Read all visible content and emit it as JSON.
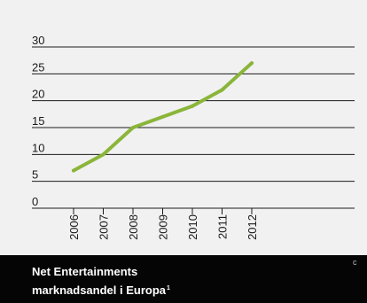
{
  "chart_data": {
    "type": "line",
    "title": "Net Entertainments marknadsandel i Europa",
    "title_note": "1",
    "x": [
      "2006",
      "2007",
      "2008",
      "2009",
      "2010",
      "2011",
      "2012"
    ],
    "series": [
      {
        "values": [
          7,
          10,
          15,
          17,
          19,
          22,
          27
        ]
      }
    ],
    "yticks": [
      0,
      5,
      10,
      15,
      20,
      25,
      30
    ],
    "ylim": [
      0,
      30
    ],
    "xlabel": "",
    "ylabel": "",
    "grid": true,
    "colors": {
      "line": "#8ab53a",
      "grid": "#1a1a1a",
      "panel": "#f1f1f1",
      "footer": "#050505"
    }
  },
  "footer": {
    "title_line1": "Net Entertainments",
    "title_line2": "marknadsandel i Europa",
    "note_mark": "1",
    "corner_mark": "c"
  }
}
